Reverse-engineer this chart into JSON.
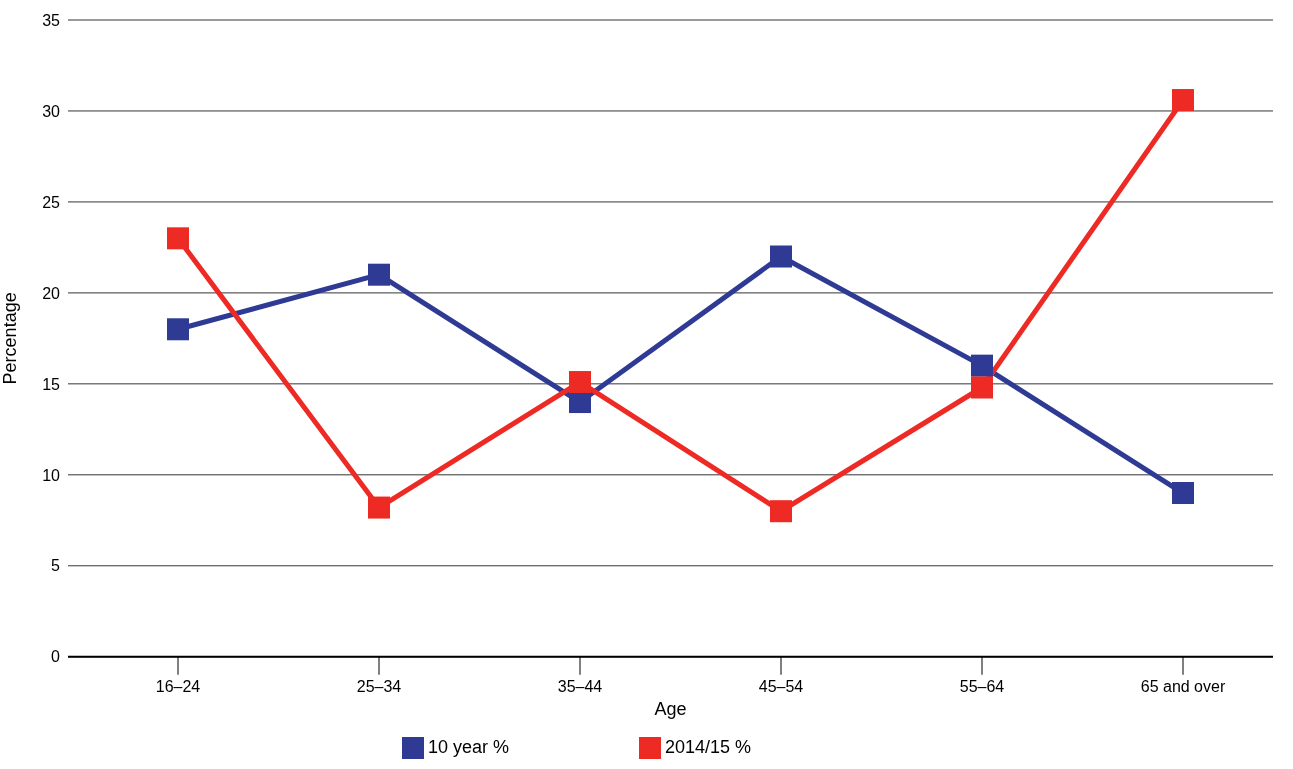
{
  "chart_data": {
    "type": "line",
    "xlabel": "Age",
    "ylabel": "Percentage",
    "categories": [
      "16–24",
      "25–34",
      "35–44",
      "45–54",
      "55–64",
      "65 and over"
    ],
    "series": [
      {
        "name": "10 year %",
        "color": "#2e3a93",
        "values": [
          18,
          21,
          14,
          22,
          16,
          9
        ]
      },
      {
        "name": "2014/15 %",
        "color": "#ee2a24",
        "values": [
          23,
          8.2,
          15.1,
          8,
          14.8,
          30.6
        ]
      }
    ],
    "ylim": [
      0,
      35
    ],
    "yticks": [
      0,
      5,
      10,
      15,
      20,
      25,
      30,
      35
    ],
    "grid": "y",
    "legend": "bottom",
    "marker": "square",
    "line_style": "solid"
  }
}
